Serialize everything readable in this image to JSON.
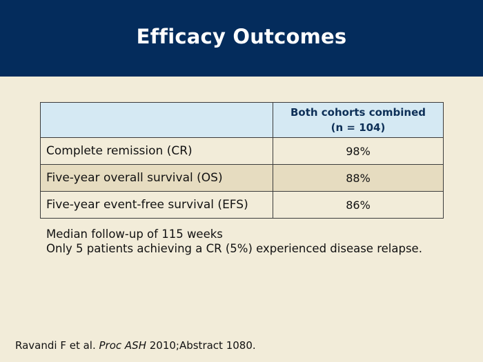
{
  "slide": {
    "title": "Efficacy Outcomes"
  },
  "table": {
    "header_col_line1": "Both cohorts combined",
    "header_col_line2": "(n = 104)",
    "rows": [
      {
        "label": "Complete remission (CR)",
        "value": "98%"
      },
      {
        "label": "Five-year overall survival (OS)",
        "value": "88%"
      },
      {
        "label": "Five-year event-free survival (EFS)",
        "value": "86%"
      }
    ]
  },
  "notes": {
    "line1": "Median follow-up of 115 weeks",
    "line2": "Only 5 patients achieving a CR (5%) experienced disease relapse."
  },
  "citation": {
    "authors": "Ravandi F et al. ",
    "journal": "Proc ASH",
    "rest": " 2010;Abstract 1080."
  },
  "colors": {
    "header_bg": "#042c5c",
    "slide_bg": "#f2ecd9",
    "table_header_bg": "#d5e9f3",
    "alt_row_bg": "#e6dcc0"
  }
}
